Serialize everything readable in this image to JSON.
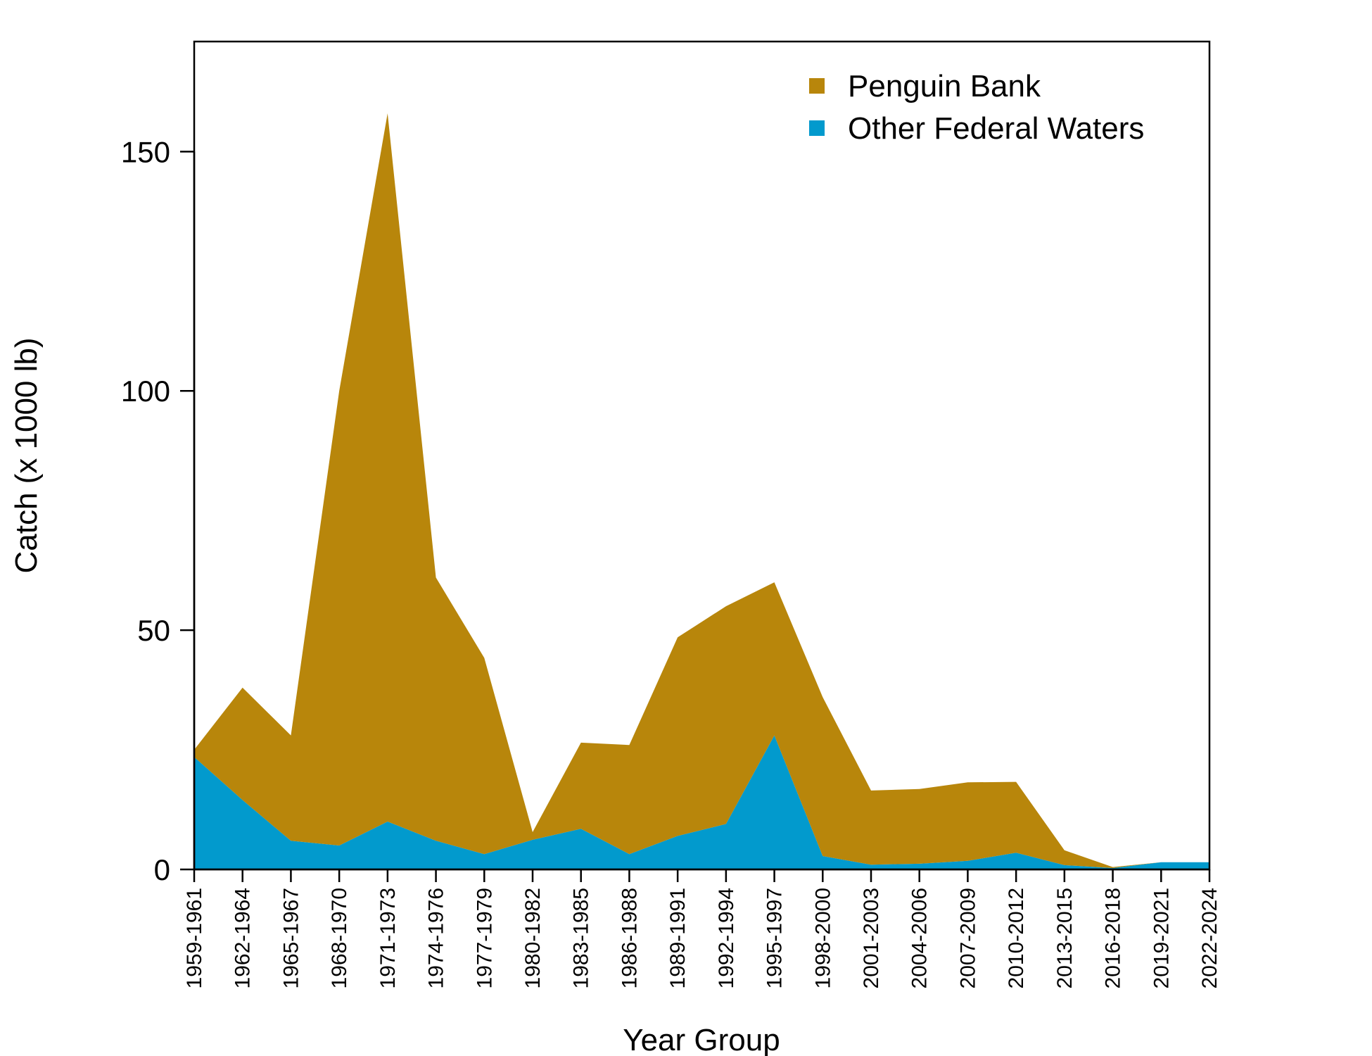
{
  "chart_data": {
    "type": "area",
    "stacked": true,
    "xlabel": "Year Group",
    "ylabel": "Catch (x 1000 lb)",
    "ylim": [
      0,
      173
    ],
    "yticks": [
      0,
      50,
      100,
      150
    ],
    "legend_position": "top-right",
    "grid": false,
    "categories": [
      "1959-1961",
      "1962-1964",
      "1965-1967",
      "1968-1970",
      "1971-1973",
      "1974-1976",
      "1977-1979",
      "1980-1982",
      "1983-1985",
      "1986-1988",
      "1989-1991",
      "1992-1994",
      "1995-1997",
      "1998-2000",
      "2001-2003",
      "2004-2006",
      "2007-2009",
      "2010-2012",
      "2013-2015",
      "2016-2018",
      "2019-2021",
      "2022-2024"
    ],
    "series": [
      {
        "name": "Other Federal Waters",
        "color": "#029ACD",
        "values": [
          23.5,
          14.5,
          6,
          5,
          10,
          6,
          3.2,
          6.2,
          8.5,
          3.2,
          7,
          9.5,
          28,
          2.8,
          1,
          1.2,
          1.8,
          3.5,
          0.9,
          0.3,
          1.5,
          1.5
        ]
      },
      {
        "name": "Penguin Bank",
        "color": "#B8860B",
        "values": [
          1.5,
          23.5,
          22,
          95,
          148,
          55,
          41,
          1.6,
          18,
          22.8,
          41.5,
          45.5,
          32,
          33.2,
          15.5,
          15.6,
          16.4,
          14.8,
          3.1,
          0.2,
          0,
          0
        ]
      }
    ],
    "legend": [
      {
        "label": "Penguin Bank",
        "color": "#B8860B"
      },
      {
        "label": "Other Federal Waters",
        "color": "#029ACD"
      }
    ]
  }
}
